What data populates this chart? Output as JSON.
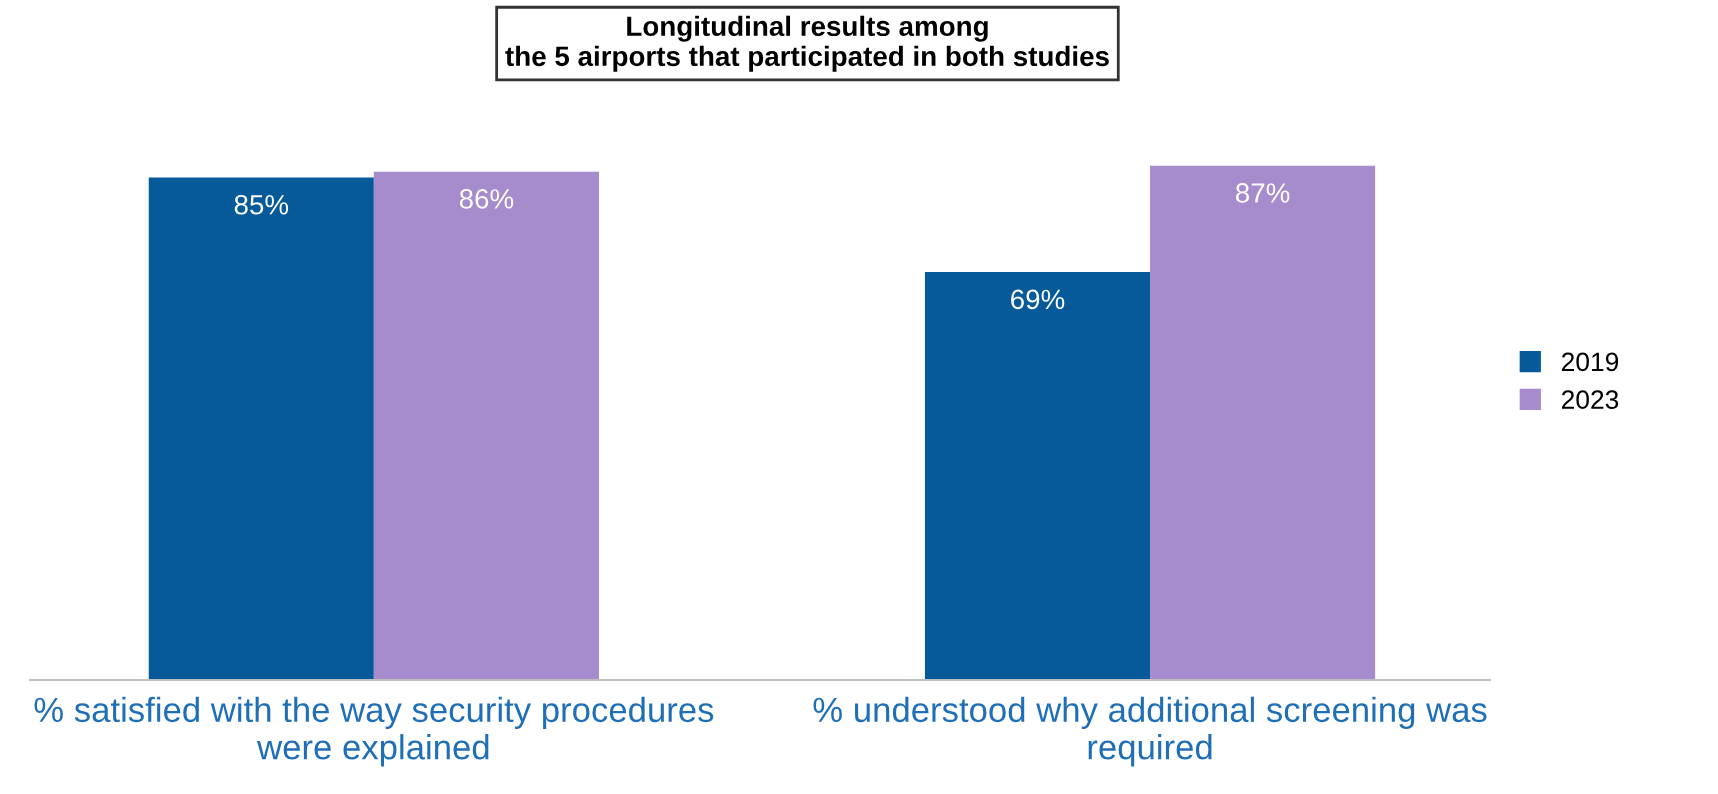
{
  "chart_data": {
    "type": "bar",
    "title": "Longitudinal results among\nthe 5 airports that participated in both studies",
    "categories": [
      "% satisfied with the way security procedures were explained",
      "% understood why additional screening was required"
    ],
    "series": [
      {
        "name": "2019",
        "color": "#065a9a",
        "values": [
          85,
          69
        ],
        "value_labels": [
          "85%",
          "69%"
        ]
      },
      {
        "name": "2023",
        "color": "#a68bcd",
        "values": [
          86,
          87
        ],
        "value_labels": [
          "86%",
          "87%"
        ]
      }
    ],
    "tick_labels": "x",
    "legend": "right"
  }
}
